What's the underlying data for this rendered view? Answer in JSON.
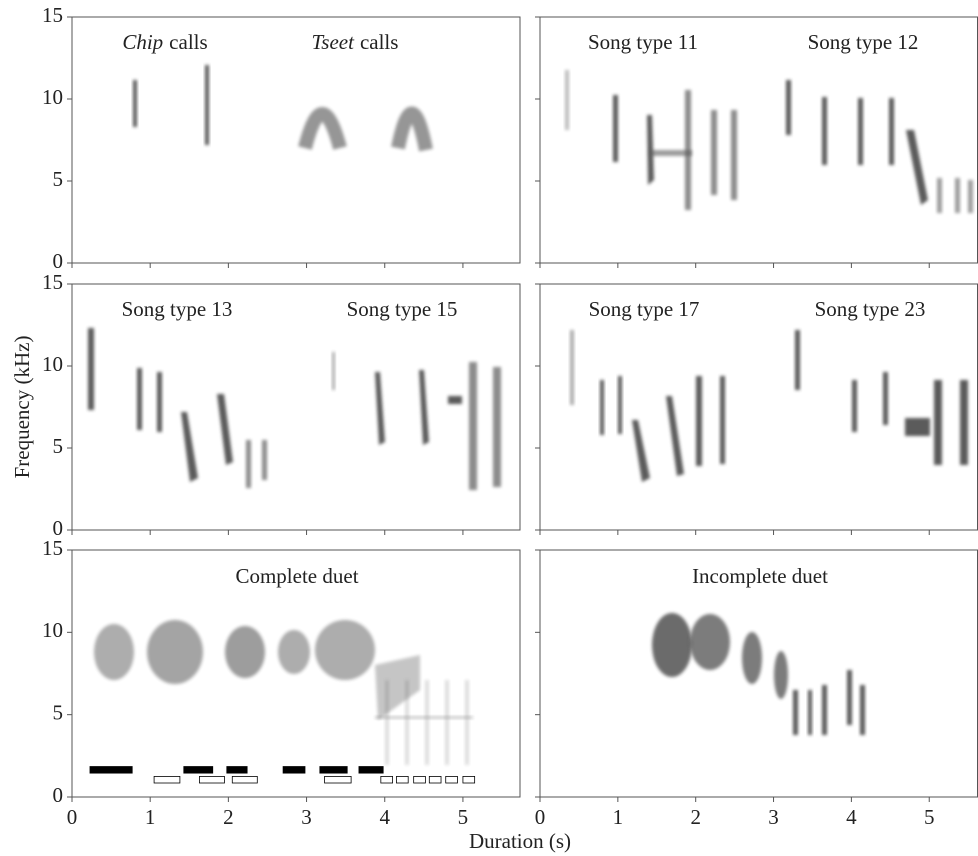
{
  "xlabel": "Duration (s)",
  "ylabel": "Frequency (kHz)",
  "chart_data": [
    {
      "type": "spectrogram",
      "annotations": [
        {
          "italic": "Chip",
          "text": "calls"
        },
        {
          "italic": "Tseet",
          "text": "calls"
        }
      ],
      "xlim": [
        0,
        5.73
      ],
      "ylim": [
        0,
        15
      ],
      "xticks": [
        0,
        1,
        2,
        3,
        4,
        5
      ],
      "yticks": [
        0,
        5,
        10,
        15
      ]
    },
    {
      "type": "spectrogram",
      "annotations": [
        "Song type 11",
        "Song type 12"
      ],
      "xlim": [
        0,
        5.62
      ],
      "ylim": [
        0,
        15
      ],
      "xticks": [
        0,
        1,
        2,
        3,
        4,
        5
      ],
      "yticks": [
        0,
        5,
        10,
        15
      ]
    },
    {
      "type": "spectrogram",
      "annotations": [
        "Song type 13",
        "Song type 15"
      ],
      "xlim": [
        0,
        5.73
      ],
      "ylim": [
        0,
        15
      ],
      "xticks": [
        0,
        1,
        2,
        3,
        4,
        5
      ],
      "yticks": [
        0,
        5,
        10,
        15
      ]
    },
    {
      "type": "spectrogram",
      "annotations": [
        "Song type 17",
        "Song type 23"
      ],
      "xlim": [
        0,
        5.62
      ],
      "ylim": [
        0,
        15
      ],
      "xticks": [
        0,
        1,
        2,
        3,
        4,
        5
      ],
      "yticks": [
        0,
        5,
        10,
        15
      ]
    },
    {
      "type": "spectrogram",
      "annotations": [
        "Complete duet"
      ],
      "xlim": [
        0,
        5.73
      ],
      "ylim": [
        0,
        15
      ],
      "xticks": [
        0,
        1,
        2,
        3,
        4,
        5
      ],
      "yticks": [
        0,
        5,
        10,
        15
      ],
      "bars": [
        {
          "color": "#000000",
          "y": 1.65,
          "height": 0.4,
          "x": [
            [
              0.23,
              0.77
            ],
            [
              1.43,
              1.8
            ],
            [
              1.98,
              2.24
            ],
            [
              2.7,
              2.98
            ],
            [
              3.17,
              3.52
            ],
            [
              3.67,
              3.98
            ]
          ]
        },
        {
          "color": "#ffffff",
          "y": 1.05,
          "height": 0.4,
          "x": [
            [
              1.05,
              1.38
            ],
            [
              1.63,
              1.95
            ],
            [
              2.05,
              2.37
            ],
            [
              3.23,
              3.57
            ],
            [
              3.95,
              4.1
            ],
            [
              4.15,
              4.3
            ],
            [
              4.37,
              4.52
            ],
            [
              4.57,
              4.72
            ],
            [
              4.78,
              4.93
            ],
            [
              5.0,
              5.15
            ]
          ]
        }
      ]
    },
    {
      "type": "spectrogram",
      "annotations": [
        "Incomplete duet"
      ],
      "xlim": [
        0,
        5.62
      ],
      "ylim": [
        0,
        15
      ],
      "xticks": [
        0,
        1,
        2,
        3,
        4,
        5
      ],
      "yticks": [
        0,
        5,
        10,
        15
      ]
    }
  ]
}
